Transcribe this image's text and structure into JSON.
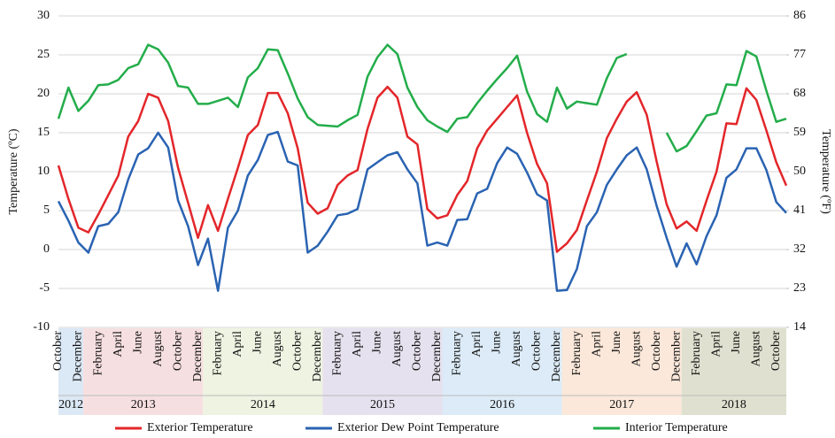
{
  "chart_data": {
    "type": "line",
    "y_label": "Temperature (ºC)",
    "y2_label": "Temperature (ºF)",
    "categories": [
      "October",
      null,
      "December",
      null,
      "February",
      null,
      "April",
      null,
      "June",
      null,
      "August",
      null,
      "October",
      null,
      "December",
      null,
      "February",
      null,
      "April",
      null,
      "June",
      null,
      "August",
      null,
      "October",
      null,
      "December",
      null,
      "February",
      null,
      "April",
      null,
      "June",
      null,
      "August",
      null,
      "October",
      null,
      "December",
      null,
      "February",
      null,
      "April",
      null,
      "June",
      null,
      "August",
      null,
      "October",
      null,
      "December",
      null,
      "February",
      null,
      "April",
      null,
      "June",
      null,
      "August",
      null,
      "October",
      null,
      "December",
      null,
      "February",
      null,
      "April",
      null,
      "June",
      null,
      "August",
      null,
      "October",
      null
    ],
    "years": [
      "2012",
      "2013",
      "2014",
      "2015",
      "2016",
      "2017",
      "2018"
    ],
    "year_colors": [
      "#dbe8f5",
      "#f6dfe0",
      "#eef3e2",
      "#e6e1ee",
      "#dcebf7",
      "#fbe8da",
      "#e0e0d0"
    ],
    "series": [
      {
        "name": "Exterior Temperature",
        "color": "#e3262a",
        "values": [
          10.8,
          6.5,
          2.8,
          2.2,
          4.5,
          7,
          9.5,
          14.5,
          16.5,
          20,
          19.5,
          16.5,
          10.5,
          6,
          1.5,
          5.7,
          2.4,
          6.5,
          10.5,
          14.7,
          16,
          20.1,
          20.1,
          17.5,
          13,
          6,
          4.6,
          5.3,
          8.3,
          9.5,
          10.2,
          15.5,
          19.5,
          20.9,
          19.5,
          14.5,
          13.5,
          5.2,
          4,
          4.4,
          7,
          8.8,
          13,
          15.3,
          16.8,
          18.3,
          19.8,
          15,
          11,
          8.5,
          -0.3,
          0.8,
          2.5,
          6.3,
          10,
          14.3,
          16.8,
          19,
          20.2,
          17.3,
          11.3,
          5.8,
          2.7,
          3.6,
          2.4,
          6.3,
          10,
          16.2,
          16.1,
          20.7,
          19.2,
          15.3,
          11.2,
          8.2
        ]
      },
      {
        "name": "Exterior Dew Point Temperature",
        "color": "#2a63b2",
        "values": [
          6.2,
          3.7,
          0.9,
          -0.4,
          3,
          3.3,
          4.8,
          9,
          12.2,
          13,
          15,
          13.1,
          6.3,
          3,
          -2,
          1.4,
          -5.3,
          2.8,
          5,
          9.5,
          11.5,
          14.7,
          15.1,
          11.3,
          10.8,
          -0.4,
          0.5,
          2.3,
          4.4,
          4.6,
          5.2,
          10.3,
          11.2,
          12.1,
          12.5,
          10.3,
          8.5,
          0.5,
          0.9,
          0.5,
          3.8,
          3.9,
          7.2,
          7.8,
          11.1,
          13.1,
          12.3,
          9.9,
          7.1,
          6.3,
          -5.3,
          -5.2,
          -2.5,
          3,
          4.8,
          8.3,
          10.3,
          12.1,
          13.1,
          10.3,
          5.6,
          1.5,
          -2.2,
          0.8,
          -1.9,
          1.7,
          4.4,
          9.2,
          10.3,
          13,
          13,
          10.2,
          6.1,
          4.7
        ]
      },
      {
        "name": "Interior Temperature",
        "color": "#23ad4a",
        "values": [
          16.8,
          20.8,
          17.8,
          19.1,
          21.1,
          21.2,
          21.8,
          23.3,
          23.8,
          26.3,
          25.7,
          24,
          21,
          20.8,
          18.7,
          18.7,
          19.1,
          19.5,
          18.3,
          22.1,
          23.3,
          25.7,
          25.6,
          22.6,
          19.4,
          17,
          16,
          15.9,
          15.8,
          16.6,
          17.3,
          22.2,
          24.7,
          26.3,
          25.1,
          20.8,
          18.3,
          16.6,
          15.8,
          15.1,
          16.8,
          17,
          18.8,
          20.4,
          21.9,
          23.3,
          24.9,
          20.3,
          17.4,
          16.4,
          20.8,
          18.1,
          19,
          18.8,
          18.6,
          22,
          24.6,
          25.1,
          null,
          null,
          null,
          15,
          12.6,
          13.3,
          15.2,
          17.2,
          17.5,
          21.2,
          21.1,
          25.5,
          24.8,
          20.4,
          16.4,
          16.8
        ]
      }
    ],
    "ylim": [
      -10,
      30
    ],
    "yticks": [
      -10,
      -5,
      0,
      5,
      10,
      15,
      20,
      25,
      30
    ],
    "y2lim": [
      14,
      86
    ],
    "y2ticks": [
      14,
      23,
      32,
      41,
      50,
      59,
      68,
      77,
      86
    ],
    "grid": true
  }
}
